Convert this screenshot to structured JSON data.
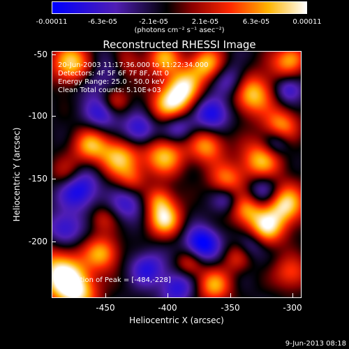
{
  "colorbar": {
    "tick_labels": [
      "-0.00011",
      "-6.3e-05",
      "-2.1e-05",
      "2.1e-05",
      "6.3e-05",
      "0.00011"
    ],
    "unit": "(photons cm⁻² s⁻¹ asec⁻²)"
  },
  "title": "Reconstructed RHESSI Image",
  "info": {
    "time_range": "20-Jun-2003 11:17:36.000 to 11:22:34.000",
    "detectors": "Detectors: 4F 5F 6F 7F 8F, Att 0",
    "energy_range": "Energy Range: 25.0 - 50.0 keV",
    "clean_counts": "Clean    Total counts: 5.10E+03"
  },
  "peak_label": "Position of Peak = [-484,-228]",
  "axes": {
    "xlabel": "Heliocentric X (arcsec)",
    "ylabel": "Heliocentric Y (arcsec)",
    "x_ticks": [
      "-450",
      "-400",
      "-350",
      "-300"
    ],
    "y_ticks": [
      "-50",
      "-100",
      "-150",
      "-200"
    ]
  },
  "date_stamp": "9-Jun-2013 08:18"
}
